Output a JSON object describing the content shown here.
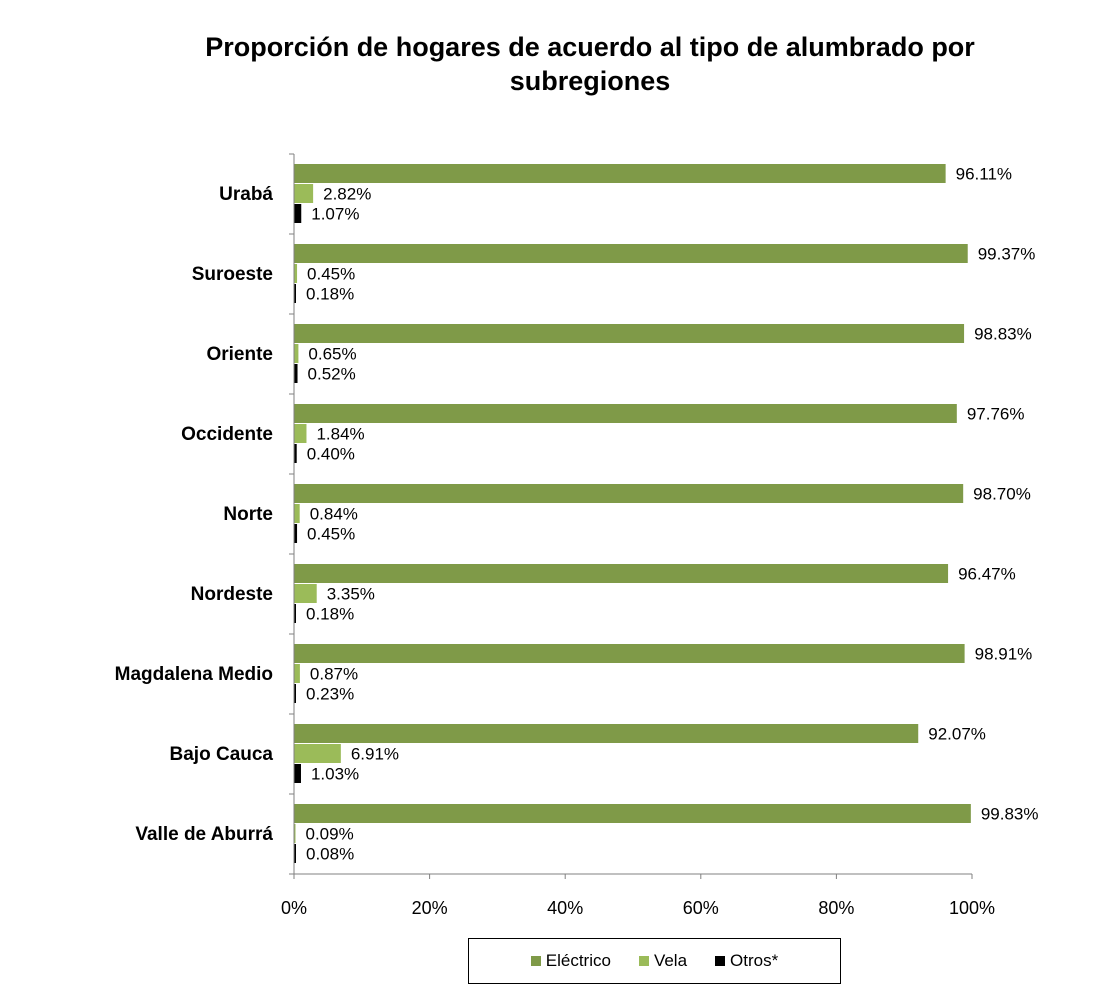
{
  "chart_data": {
    "type": "bar",
    "orientation": "horizontal",
    "title": "Proporción de hogares de acuerdo al tipo de alumbrado por subregiones",
    "categories": [
      "Urabá",
      "Suroeste",
      "Oriente",
      "Occidente",
      "Norte",
      "Nordeste",
      "Magdalena Medio",
      "Bajo Cauca",
      "Valle de Aburrá"
    ],
    "series": [
      {
        "name": "Eléctrico",
        "color": "#7f9a48",
        "values": [
          96.11,
          99.37,
          98.83,
          97.76,
          98.7,
          96.47,
          98.91,
          92.07,
          99.83
        ],
        "labels": [
          "96.11%",
          "99.37%",
          "98.83%",
          "97.76%",
          "98.70%",
          "96.47%",
          "98.91%",
          "92.07%",
          "99.83%"
        ]
      },
      {
        "name": "Vela",
        "color": "#9bbb59",
        "values": [
          2.82,
          0.45,
          0.65,
          1.84,
          0.84,
          3.35,
          0.87,
          6.91,
          0.09
        ],
        "labels": [
          "2.82%",
          "0.45%",
          "0.65%",
          "1.84%",
          "0.84%",
          "3.35%",
          "0.87%",
          "6.91%",
          "0.09%"
        ]
      },
      {
        "name": "Otros*",
        "color": "#000000",
        "values": [
          1.07,
          0.18,
          0.52,
          0.4,
          0.45,
          0.18,
          0.23,
          1.03,
          0.08
        ],
        "labels": [
          "1.07%",
          "0.18%",
          "0.52%",
          "0.40%",
          "0.45%",
          "0.18%",
          "0.23%",
          "1.03%",
          "0.08%"
        ]
      }
    ],
    "xlim": [
      0,
      100
    ],
    "xticks": [
      "0%",
      "20%",
      "40%",
      "60%",
      "80%",
      "100%"
    ],
    "grid": false,
    "legend_position": "bottom"
  }
}
